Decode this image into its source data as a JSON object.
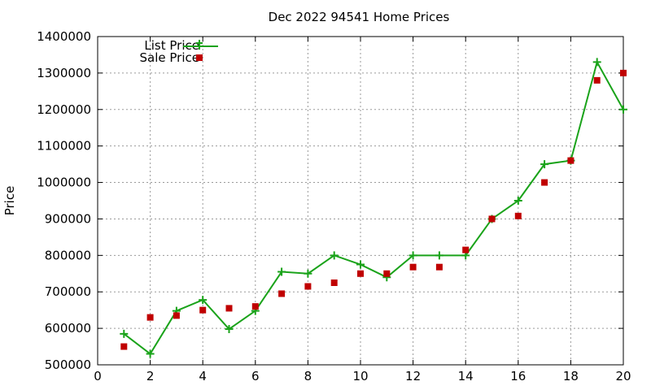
{
  "chart_data": {
    "type": "line",
    "title": "Dec 2022 94541 Home Prices",
    "xlabel": "",
    "ylabel": "Price",
    "xlim": [
      0,
      20
    ],
    "ylim": [
      500000,
      1400000
    ],
    "xticks": [
      "0",
      "2",
      "4",
      "6",
      "8",
      "10",
      "12",
      "14",
      "16",
      "18",
      "20"
    ],
    "yticks": [
      "500000",
      "600000",
      "700000",
      "800000",
      "900000",
      "1000000",
      "1100000",
      "1200000",
      "1300000",
      "1400000"
    ],
    "grid": true,
    "legend_position": "top-left",
    "x": [
      1,
      2,
      3,
      4,
      5,
      6,
      7,
      8,
      9,
      10,
      11,
      12,
      13,
      14,
      15,
      16,
      17,
      18,
      19,
      20
    ],
    "series": [
      {
        "name": "List Price",
        "style": "line-with-plus-markers",
        "color": "#1aa31a",
        "values": [
          585000,
          530000,
          648000,
          678000,
          598000,
          648000,
          755000,
          750000,
          800000,
          775000,
          740000,
          800000,
          800000,
          800000,
          900000,
          950000,
          1050000,
          1060000,
          1330000,
          1200000
        ]
      },
      {
        "name": "Sale Price",
        "style": "square-markers",
        "color": "#c00000",
        "values": [
          550000,
          630000,
          635000,
          650000,
          655000,
          660000,
          695000,
          715000,
          725000,
          750000,
          750000,
          768000,
          768000,
          815000,
          900000,
          908000,
          1000000,
          1060000,
          1280000,
          1300000
        ]
      }
    ]
  }
}
